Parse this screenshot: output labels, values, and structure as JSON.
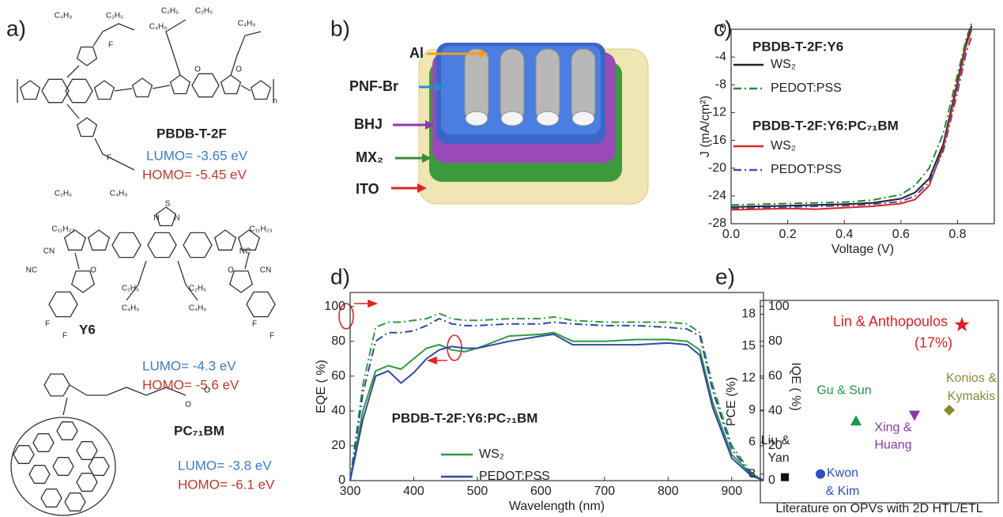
{
  "panel_a": {
    "label": "a)",
    "molecules": [
      {
        "name": "PBDB-T-2F",
        "lumo": "LUMO= -3.65 eV",
        "homo": "HOMO= -5.45 eV",
        "atoms": [
          "C₄H₉",
          "C₂H₅",
          "C₄H₉",
          "C₂H₅",
          "C₂H₅",
          "C₄H₉",
          "F",
          "O",
          "O",
          "n",
          "F",
          "C₂H₅",
          "C₄H₉"
        ]
      },
      {
        "name": "Y6",
        "lumo": "LUMO= -4.3 eV",
        "homo": "HOMO= -5.6 eV",
        "atoms": [
          "N",
          "S",
          "N",
          "C₁₁H₂₃",
          "C₁₁H₂₃",
          "CN",
          "NC",
          "O",
          "C₂H₅",
          "C₂H₅",
          "C₄H₉",
          "C₄H₉",
          "O",
          "NC",
          "CN",
          "F",
          "F",
          "F",
          "F"
        ]
      },
      {
        "name": "PC₇₁BM",
        "lumo": "LUMO= -3.8 eV",
        "homo": "HOMO= -6.1 eV",
        "atoms": [
          "O",
          "O"
        ]
      }
    ]
  },
  "panel_b": {
    "label": "b)",
    "layers": [
      "Al",
      "PNF-Br",
      "BHJ",
      "MX₂",
      "ITO"
    ]
  },
  "chart_data": [
    {
      "type": "line",
      "panel_label": "c)",
      "xlabel": "Voltage (V)",
      "ylabel": "J (mA/cm²)",
      "x": [
        0,
        0.1,
        0.2,
        0.3,
        0.4,
        0.5,
        0.6,
        0.65,
        0.7,
        0.75,
        0.8,
        0.83,
        0.85
      ],
      "xlim": [
        0,
        0.93
      ],
      "xticks": [
        {
          "value": 0,
          "label": "0.0"
        },
        0.2,
        0.4,
        0.6,
        0.8
      ],
      "ylim": [
        -28,
        0
      ],
      "yticks": [
        0,
        -4,
        -8,
        -12,
        -16,
        -20,
        -24,
        -28
      ],
      "legend_titles": [
        "PBDB-T-2F:Y6",
        "PBDB-T-2F:Y6:PC₇₁BM"
      ],
      "series": [
        {
          "name": "WS₂",
          "color": "#222222",
          "dash": "solid",
          "values": [
            -25.6,
            -25.5,
            -25.4,
            -25.3,
            -25.2,
            -25,
            -24.4,
            -23.5,
            -21.5,
            -16.5,
            -7.5,
            -2,
            0.5
          ]
        },
        {
          "name": "PEDOT:PSS",
          "color": "#1f8a3a",
          "dash": "dashdot",
          "values": [
            -25.3,
            -25.2,
            -25.1,
            -25,
            -24.9,
            -24.6,
            -23.8,
            -22.5,
            -20,
            -15,
            -6.5,
            -1.5,
            1
          ]
        },
        {
          "name": "WS₂",
          "color": "#e02424",
          "dash": "solid",
          "values": [
            -26,
            -25.9,
            -25.8,
            -25.9,
            -25.7,
            -25.5,
            -25.1,
            -24.5,
            -22.5,
            -17,
            -8,
            -2.5,
            0
          ]
        },
        {
          "name": "PEDOT:PSS",
          "color": "#4a4ab8",
          "dash": "dashdot",
          "values": [
            -25.8,
            -25.7,
            -25.6,
            -25.5,
            -25.4,
            -25.2,
            -24.8,
            -24,
            -22,
            -17.5,
            -9,
            -3.5,
            -1
          ]
        }
      ]
    },
    {
      "type": "line",
      "panel_label": "d)",
      "xlabel": "Wavelength (nm)",
      "ylabel": "EQE ( %)",
      "y2label": "IQE ( %)",
      "annotation": "PBDB-T-2F:Y6:PC₇₁BM",
      "x": [
        300,
        320,
        340,
        360,
        380,
        400,
        420,
        440,
        460,
        480,
        500,
        550,
        600,
        620,
        650,
        700,
        750,
        800,
        830,
        850,
        870,
        900,
        930,
        950
      ],
      "xlim": [
        300,
        950
      ],
      "xticks": [
        300,
        400,
        500,
        600,
        700,
        800,
        900
      ],
      "ylim": [
        0,
        108
      ],
      "yticks": [
        0,
        20,
        40,
        60,
        80,
        100
      ],
      "y2lim": [
        0,
        108
      ],
      "y2ticks": [
        0,
        20,
        40,
        60,
        80,
        100
      ],
      "series": [
        {
          "name": "WS₂",
          "color": "#2e9a40",
          "dash": "solid",
          "values": [
            0,
            40,
            63,
            66,
            64,
            70,
            76,
            78,
            75,
            74,
            76,
            83,
            84,
            85,
            80,
            80,
            81,
            81,
            80,
            75,
            45,
            15,
            4,
            0
          ]
        },
        {
          "name": "PEDOT:PSS",
          "color": "#2f4aa0",
          "dash": "solid",
          "values": [
            0,
            35,
            60,
            63,
            56,
            62,
            70,
            75,
            77,
            76,
            76,
            80,
            83,
            84,
            78,
            78,
            78,
            79,
            78,
            72,
            42,
            13,
            3,
            0
          ]
        },
        {
          "color": "#2e9a40",
          "dash": "dashdot",
          "axis": "y2",
          "values": [
            0,
            55,
            88,
            91,
            91,
            92,
            93,
            96,
            93,
            92,
            92,
            93,
            93,
            94,
            92,
            91,
            91,
            91,
            90,
            85,
            55,
            20,
            5,
            0
          ]
        },
        {
          "color": "#2f4aa0",
          "dash": "dashdot",
          "axis": "y2",
          "values": [
            0,
            50,
            80,
            85,
            85,
            86,
            89,
            93,
            90,
            89,
            89,
            90,
            90,
            91,
            90,
            89,
            89,
            88,
            87,
            83,
            52,
            18,
            4,
            0
          ]
        }
      ]
    },
    {
      "type": "scatter",
      "panel_label": "e)",
      "xlabel": "Literature on OPVs with 2D HTL/ETL",
      "ylabel": "PCE (%)",
      "categories": [
        [
          "Liu &",
          "Yan"
        ],
        [
          "Kwon",
          "& Kim"
        ],
        [
          "Gu & Sun"
        ],
        [
          "Xing &",
          "Huang"
        ],
        [
          "Konios &",
          "Kymakis"
        ],
        [
          "Lin & Anthopoulos"
        ]
      ],
      "values": [
        2.7,
        3,
        8,
        8.5,
        9,
        17
      ],
      "colors": [
        "#111111",
        "#3050c0",
        "#1a9a4a",
        "#8a3aa0",
        "#8a8a30",
        "#e02020"
      ],
      "markers": [
        "square",
        "circle",
        "triangle-up",
        "triangle-down",
        "diamond",
        "star"
      ],
      "annotation": "(17%)",
      "ylim": [
        0.3,
        19.3
      ],
      "yticks": [
        3,
        6,
        9,
        12,
        15,
        18
      ]
    }
  ]
}
